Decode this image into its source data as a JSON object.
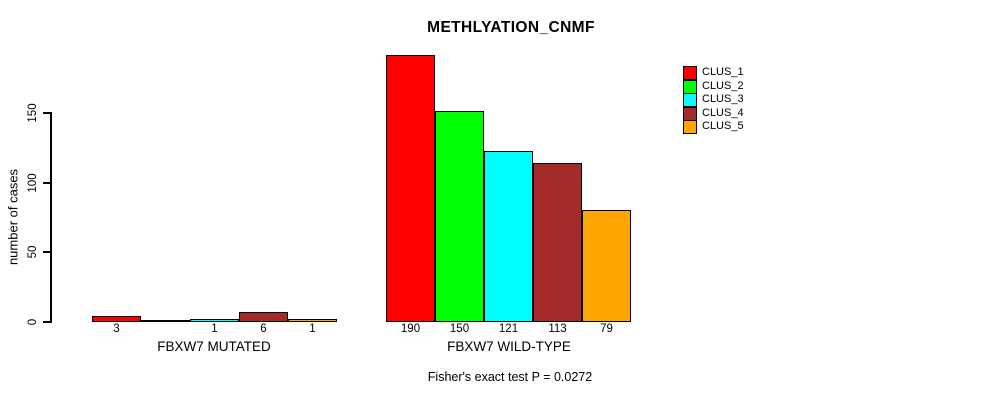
{
  "chart_data": {
    "type": "bar",
    "title": "METHLYATION_CNMF",
    "ylabel": "number of cases",
    "ylim": [
      0,
      150
    ],
    "yticks": [
      0,
      50,
      100,
      150
    ],
    "grid": false,
    "legend_position": "top-right",
    "clusters": [
      "CLUS_1",
      "CLUS_2",
      "CLUS_3",
      "CLUS_4",
      "CLUS_5"
    ],
    "cluster_colors": [
      "#ff0000",
      "#00ff00",
      "#00ffff",
      "#a52a2a",
      "#ffa500"
    ],
    "groups": [
      {
        "label": "FBXW7 MUTATED",
        "values": [
          3,
          0,
          1,
          6,
          1
        ],
        "bar_labels": [
          "3",
          "",
          "1",
          "6",
          "1"
        ]
      },
      {
        "label": "FBXW7 WILD-TYPE",
        "values": [
          190,
          150,
          121,
          113,
          79
        ],
        "bar_labels": [
          "190",
          "150",
          "121",
          "113",
          "79"
        ]
      }
    ],
    "annotation": "Fisher's exact test P = 0.0272"
  }
}
